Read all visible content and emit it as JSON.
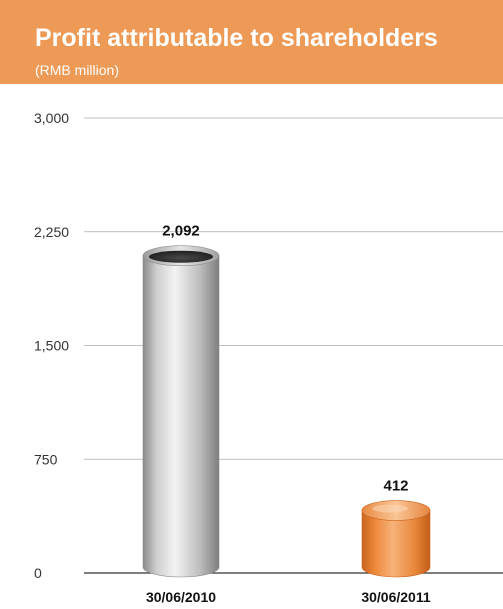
{
  "chart_data": {
    "type": "bar",
    "title": "Profit attributable to shareholders",
    "subtitle": "(RMB million)",
    "categories": [
      "30/06/2010",
      "30/06/2011"
    ],
    "values": [
      2092,
      412
    ],
    "value_labels": [
      "2,092",
      "412"
    ],
    "ylim": [
      0,
      3000
    ],
    "yticks": [
      0,
      750,
      1500,
      2250,
      3000
    ],
    "ytick_labels": [
      "0",
      "750",
      "1,500",
      "2,250",
      "3,000"
    ],
    "grid": true,
    "bar_style": "cylinder",
    "colors": {
      "header": "#ED9A57",
      "bar_2010": "#B9B9B9",
      "bar_2011": "#EE8A3C",
      "grid": "#AAAAAA"
    }
  }
}
